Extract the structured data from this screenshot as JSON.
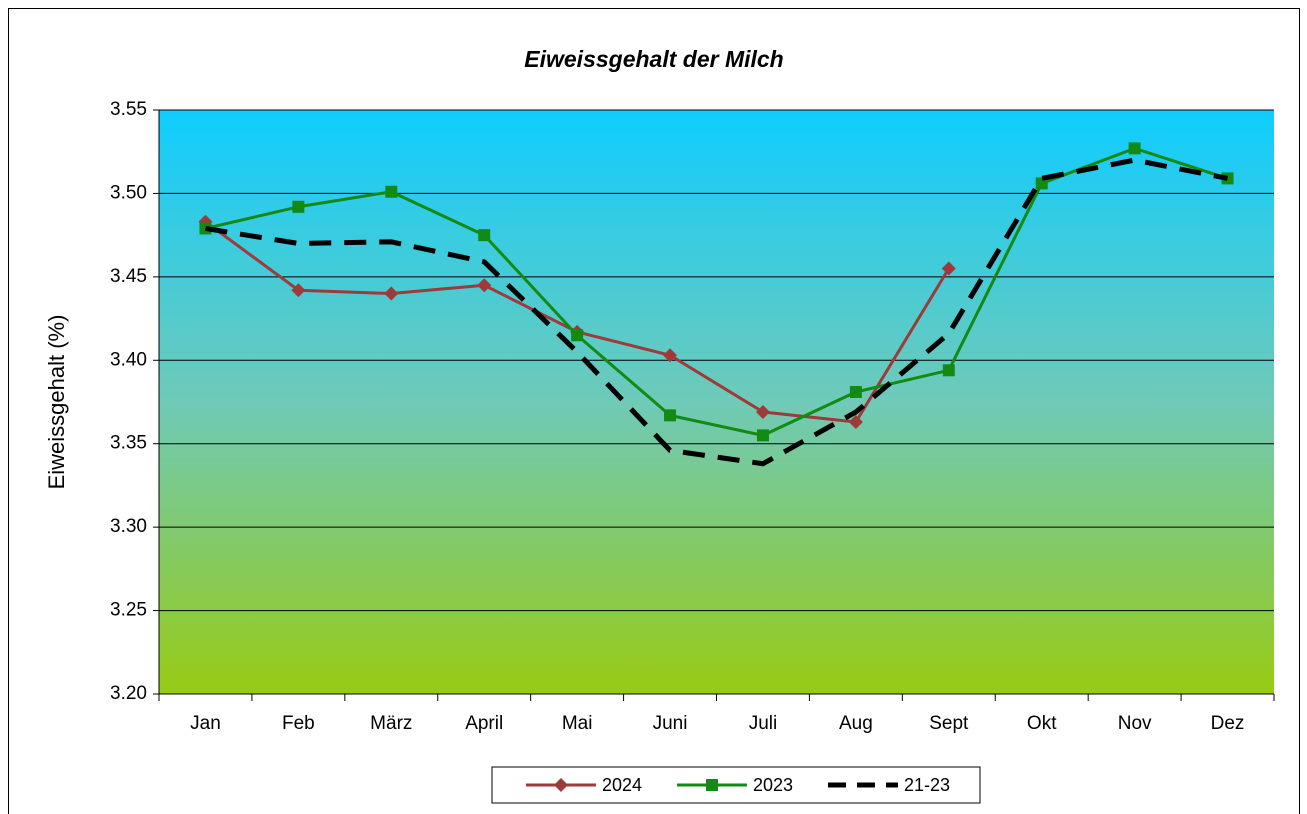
{
  "chart_data": {
    "type": "line",
    "title": "Eiweissgehalt der Milch",
    "y_label": "Eiweissgehalt (%)",
    "categories": [
      "Jan",
      "Feb",
      "März",
      "April",
      "Mai",
      "Juni",
      "Juli",
      "Aug",
      "Sept",
      "Okt",
      "Nov",
      "Dez"
    ],
    "series": [
      {
        "name": "2024",
        "color": "#9e3a3a",
        "marker": "diamond",
        "values": [
          3.483,
          3.442,
          3.44,
          3.445,
          3.417,
          3.403,
          3.369,
          3.363,
          3.455,
          null,
          null,
          null
        ]
      },
      {
        "name": "2023",
        "color": "#138a13",
        "marker": "square",
        "values": [
          3.479,
          3.492,
          3.501,
          3.475,
          3.415,
          3.367,
          3.355,
          3.381,
          3.394,
          3.506,
          3.527,
          3.509
        ]
      },
      {
        "name": "21-23",
        "color": "#000000",
        "dash": true,
        "values": [
          3.479,
          3.47,
          3.471,
          3.459,
          3.405,
          3.346,
          3.338,
          3.369,
          3.416,
          3.509,
          3.52,
          3.509
        ]
      }
    ],
    "ylim": [
      3.2,
      3.55
    ],
    "yticks": [
      {
        "value": 3.2,
        "label": "3.20"
      },
      3.25,
      {
        "value": 3.3,
        "label": "3.30"
      },
      3.35,
      {
        "value": 3.4,
        "label": "3.40"
      },
      3.45,
      {
        "value": 3.5,
        "label": "3.50"
      },
      3.55
    ],
    "grid": true,
    "legend": "bottom"
  }
}
